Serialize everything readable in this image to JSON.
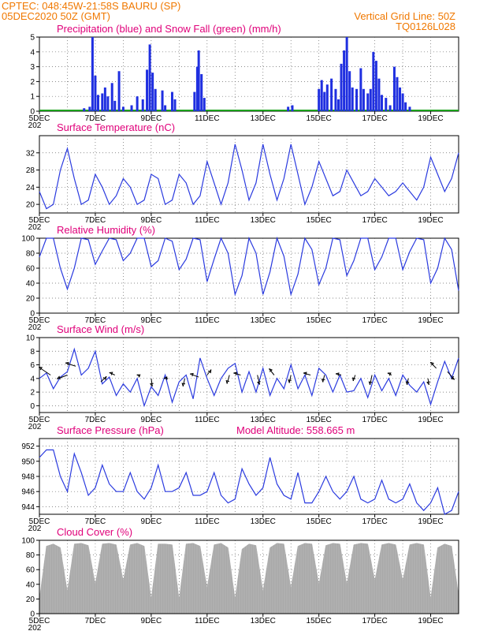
{
  "header": {
    "line1_left": "CPTEC:   048:45W-21:58S   BAURU (SP)",
    "line2_left": "05DEC2020 50Z (GMT)",
    "line1_right": "Vertical Grid Line: 50Z",
    "line2_right": "TQ0126L028"
  },
  "colors": {
    "header": "#f07800",
    "panel_title": "#e0007a",
    "line": "#2a3adf",
    "precip": "#1f2fe0",
    "snow": "#1aa01a",
    "cloud": "#a9a9a9"
  },
  "x_axis": {
    "ticks": [
      "5DEC",
      "7DEC",
      "9DEC",
      "11DEC",
      "13DEC",
      "15DEC",
      "17DEC",
      "19DEC"
    ],
    "sub_label": "202"
  },
  "chart_data": [
    {
      "id": "precip",
      "type": "bar",
      "title": "Precipitation (blue) and Snow Fall (green) (mm/h)",
      "ylim": [
        0,
        5
      ],
      "yticks": [
        0,
        1,
        2,
        3,
        4,
        5
      ],
      "x_start_day": 5,
      "x_end_day": 20,
      "bars": [
        {
          "x": 6.6,
          "y": 0.2
        },
        {
          "x": 6.8,
          "y": 0.3
        },
        {
          "x": 6.9,
          "y": 5.0
        },
        {
          "x": 7.0,
          "y": 2.4
        },
        {
          "x": 7.1,
          "y": 1.1
        },
        {
          "x": 7.25,
          "y": 1.2
        },
        {
          "x": 7.35,
          "y": 1.6
        },
        {
          "x": 7.45,
          "y": 1.0
        },
        {
          "x": 7.6,
          "y": 1.9
        },
        {
          "x": 7.7,
          "y": 0.7
        },
        {
          "x": 7.85,
          "y": 2.7
        },
        {
          "x": 8.0,
          "y": 0.3
        },
        {
          "x": 8.3,
          "y": 0.4
        },
        {
          "x": 8.5,
          "y": 1.0
        },
        {
          "x": 8.7,
          "y": 0.8
        },
        {
          "x": 8.85,
          "y": 2.8
        },
        {
          "x": 8.95,
          "y": 4.5
        },
        {
          "x": 9.05,
          "y": 2.6
        },
        {
          "x": 9.15,
          "y": 1.5
        },
        {
          "x": 9.4,
          "y": 1.4
        },
        {
          "x": 9.5,
          "y": 0.4
        },
        {
          "x": 9.75,
          "y": 1.3
        },
        {
          "x": 9.85,
          "y": 0.8
        },
        {
          "x": 10.55,
          "y": 1.3
        },
        {
          "x": 10.65,
          "y": 3.0
        },
        {
          "x": 10.7,
          "y": 4.1
        },
        {
          "x": 10.8,
          "y": 2.5
        },
        {
          "x": 10.9,
          "y": 0.9
        },
        {
          "x": 13.9,
          "y": 0.3
        },
        {
          "x": 14.05,
          "y": 0.4
        },
        {
          "x": 15.0,
          "y": 1.5
        },
        {
          "x": 15.1,
          "y": 2.1
        },
        {
          "x": 15.2,
          "y": 1.3
        },
        {
          "x": 15.3,
          "y": 1.8
        },
        {
          "x": 15.45,
          "y": 2.2
        },
        {
          "x": 15.6,
          "y": 1.5
        },
        {
          "x": 15.7,
          "y": 0.8
        },
        {
          "x": 15.8,
          "y": 3.2
        },
        {
          "x": 15.9,
          "y": 4.1
        },
        {
          "x": 16.0,
          "y": 5.0
        },
        {
          "x": 16.1,
          "y": 2.7
        },
        {
          "x": 16.2,
          "y": 1.6
        },
        {
          "x": 16.35,
          "y": 1.5
        },
        {
          "x": 16.5,
          "y": 2.9
        },
        {
          "x": 16.6,
          "y": 1.5
        },
        {
          "x": 16.75,
          "y": 1.2
        },
        {
          "x": 16.85,
          "y": 1.5
        },
        {
          "x": 16.95,
          "y": 4.0
        },
        {
          "x": 17.05,
          "y": 3.4
        },
        {
          "x": 17.15,
          "y": 2.2
        },
        {
          "x": 17.25,
          "y": 1.1
        },
        {
          "x": 17.4,
          "y": 0.9
        },
        {
          "x": 17.55,
          "y": 0.4
        },
        {
          "x": 17.7,
          "y": 3.0
        },
        {
          "x": 17.8,
          "y": 2.3
        },
        {
          "x": 17.9,
          "y": 1.6
        },
        {
          "x": 18.0,
          "y": 1.2
        },
        {
          "x": 18.1,
          "y": 0.6
        },
        {
          "x": 18.25,
          "y": 0.3
        }
      ],
      "snow_baseline": 0.05
    },
    {
      "id": "temp",
      "type": "line",
      "title": "Surface Temperature (nC)",
      "ylim": [
        18,
        36
      ],
      "yticks": [
        20,
        24,
        28,
        32
      ],
      "x": [
        5.0,
        5.25,
        5.5,
        5.75,
        6.0,
        6.25,
        6.5,
        6.75,
        7.0,
        7.25,
        7.5,
        7.75,
        8.0,
        8.25,
        8.5,
        8.75,
        9.0,
        9.25,
        9.5,
        9.75,
        10.0,
        10.25,
        10.5,
        10.75,
        11.0,
        11.25,
        11.5,
        11.75,
        12.0,
        12.25,
        12.5,
        12.75,
        13.0,
        13.25,
        13.5,
        13.75,
        14.0,
        14.25,
        14.5,
        14.75,
        15.0,
        15.25,
        15.5,
        15.75,
        16.0,
        16.25,
        16.5,
        16.75,
        17.0,
        17.25,
        17.5,
        17.75,
        18.0,
        18.25,
        18.5,
        18.75,
        19.0,
        19.25,
        19.5,
        19.75,
        20.0
      ],
      "values": [
        23,
        19,
        20,
        28,
        33,
        26,
        20,
        21,
        27,
        24,
        20,
        22,
        26,
        24,
        20,
        21,
        27,
        26,
        20,
        21,
        27,
        25,
        20,
        22,
        30,
        25,
        20,
        25,
        34,
        28,
        21,
        25,
        34,
        27,
        21,
        26,
        34,
        27,
        20,
        24,
        30,
        26,
        22,
        23,
        28,
        25,
        22,
        23,
        26,
        24,
        22,
        23,
        25,
        23,
        21,
        24,
        31,
        27,
        23,
        26,
        32
      ]
    },
    {
      "id": "rh",
      "type": "line",
      "title": "Relative Humidity (%)",
      "ylim": [
        0,
        100
      ],
      "yticks": [
        0,
        20,
        40,
        60,
        80,
        100
      ],
      "x": [
        5.0,
        5.25,
        5.5,
        5.75,
        6.0,
        6.25,
        6.5,
        6.75,
        7.0,
        7.25,
        7.5,
        7.75,
        8.0,
        8.25,
        8.5,
        8.75,
        9.0,
        9.25,
        9.5,
        9.75,
        10.0,
        10.25,
        10.5,
        10.75,
        11.0,
        11.25,
        11.5,
        11.75,
        12.0,
        12.25,
        12.5,
        12.75,
        13.0,
        13.25,
        13.5,
        13.75,
        14.0,
        14.25,
        14.5,
        14.75,
        15.0,
        15.25,
        15.5,
        15.75,
        16.0,
        16.25,
        16.5,
        16.75,
        17.0,
        17.25,
        17.5,
        17.75,
        18.0,
        18.25,
        18.5,
        18.75,
        19.0,
        19.25,
        19.5,
        19.75,
        20.0
      ],
      "values": [
        75,
        100,
        100,
        60,
        32,
        60,
        100,
        98,
        65,
        83,
        100,
        98,
        70,
        80,
        100,
        100,
        62,
        70,
        100,
        96,
        58,
        72,
        100,
        98,
        42,
        72,
        100,
        80,
        25,
        50,
        100,
        80,
        25,
        55,
        100,
        76,
        25,
        52,
        100,
        85,
        38,
        60,
        100,
        98,
        50,
        70,
        100,
        100,
        58,
        75,
        100,
        100,
        58,
        82,
        100,
        98,
        40,
        60,
        100,
        85,
        30
      ]
    },
    {
      "id": "wind",
      "type": "line",
      "title": "Surface Wind (m/s)",
      "ylim": [
        -1,
        10
      ],
      "yticks": [
        0,
        2,
        4,
        6,
        8,
        10
      ],
      "x": [
        5.0,
        5.25,
        5.5,
        5.75,
        6.0,
        6.25,
        6.5,
        6.75,
        7.0,
        7.25,
        7.5,
        7.75,
        8.0,
        8.25,
        8.5,
        8.75,
        9.0,
        9.25,
        9.5,
        9.75,
        10.0,
        10.25,
        10.5,
        10.75,
        11.0,
        11.25,
        11.5,
        11.75,
        12.0,
        12.25,
        12.5,
        12.75,
        13.0,
        13.25,
        13.5,
        13.75,
        14.0,
        14.25,
        14.5,
        14.75,
        15.0,
        15.25,
        15.5,
        15.75,
        16.0,
        16.25,
        16.5,
        16.75,
        17.0,
        17.25,
        17.5,
        17.75,
        18.0,
        18.25,
        18.5,
        18.75,
        19.0,
        19.25,
        19.5,
        19.75,
        20.0
      ],
      "values": [
        4.0,
        4.8,
        2.5,
        4.2,
        5.0,
        8.3,
        4.5,
        5.5,
        8.0,
        3.2,
        4.2,
        1.5,
        3.2,
        2.0,
        4.0,
        0.0,
        2.8,
        1.5,
        4.5,
        0.5,
        3.5,
        4.5,
        1.0,
        7.0,
        4.0,
        1.5,
        4.0,
        5.5,
        6.2,
        2.0,
        5.0,
        2.0,
        5.5,
        1.5,
        4.0,
        2.5,
        6.0,
        2.5,
        4.5,
        1.5,
        5.5,
        4.5,
        2.0,
        4.5,
        2.0,
        2.2,
        4.0,
        1.2,
        4.5,
        2.2,
        4.0,
        1.5,
        4.5,
        3.0,
        2.0,
        3.5,
        0.2,
        3.5,
        6.5,
        4.0,
        7.0
      ],
      "arrows": [
        {
          "x": 5.4,
          "y": 4.5,
          "u": -3.0,
          "v": 2.0
        },
        {
          "x": 6.0,
          "y": 4.5,
          "u": -2.6,
          "v": -1.0
        },
        {
          "x": 6.3,
          "y": 5.8,
          "u": -2.6,
          "v": 0.8
        },
        {
          "x": 7.2,
          "y": 3.5,
          "u": 1.4,
          "v": 1.4
        },
        {
          "x": 7.7,
          "y": 4.5,
          "u": -1.4,
          "v": 0.6
        },
        {
          "x": 8.6,
          "y": 4.3,
          "u": -0.8,
          "v": 0.4
        },
        {
          "x": 9.0,
          "y": 4.0,
          "u": 0.3,
          "v": -2.0
        },
        {
          "x": 9.6,
          "y": 4.0,
          "u": -1.0,
          "v": 0.0
        },
        {
          "x": 10.2,
          "y": 4.0,
          "u": -0.4,
          "v": -2.0
        },
        {
          "x": 10.7,
          "y": 4.2,
          "u": -2.2,
          "v": 0.8
        },
        {
          "x": 11.0,
          "y": 4.5,
          "u": 1.0,
          "v": 1.4
        },
        {
          "x": 11.8,
          "y": 4.5,
          "u": -0.6,
          "v": -2.2
        },
        {
          "x": 12.2,
          "y": 4.5,
          "u": -1.8,
          "v": 0.5
        },
        {
          "x": 12.8,
          "y": 4.5,
          "u": 0.6,
          "v": -2.4
        },
        {
          "x": 13.4,
          "y": 4.5,
          "u": -1.3,
          "v": 1.6
        },
        {
          "x": 14.0,
          "y": 4.5,
          "u": -0.4,
          "v": -2.0
        },
        {
          "x": 14.7,
          "y": 4.5,
          "u": -1.8,
          "v": 0.5
        },
        {
          "x": 15.2,
          "y": 4.5,
          "u": -0.4,
          "v": -1.8
        },
        {
          "x": 15.8,
          "y": 4.5,
          "u": -1.4,
          "v": 0.3
        },
        {
          "x": 16.3,
          "y": 4.5,
          "u": -0.5,
          "v": -1.5
        },
        {
          "x": 16.9,
          "y": 4.5,
          "u": -0.5,
          "v": -2.5
        },
        {
          "x": 17.6,
          "y": 4.5,
          "u": -1.0,
          "v": 0.5
        },
        {
          "x": 18.2,
          "y": 4.0,
          "u": -0.3,
          "v": -1.6
        },
        {
          "x": 18.9,
          "y": 4.0,
          "u": 0.3,
          "v": -1.6
        },
        {
          "x": 19.2,
          "y": 5.5,
          "u": -1.5,
          "v": 1.5
        },
        {
          "x": 19.6,
          "y": 5.0,
          "u": 1.8,
          "v": -2.0
        }
      ]
    },
    {
      "id": "pres",
      "type": "line",
      "title": "Surface Pressure (hPa)",
      "subtitle": "Model Altitude: 558.665  m",
      "ylim": [
        943,
        953
      ],
      "yticks": [
        944,
        946,
        948,
        950,
        952
      ],
      "x": [
        5.0,
        5.25,
        5.5,
        5.75,
        6.0,
        6.25,
        6.5,
        6.75,
        7.0,
        7.25,
        7.5,
        7.75,
        8.0,
        8.25,
        8.5,
        8.75,
        9.0,
        9.25,
        9.5,
        9.75,
        10.0,
        10.25,
        10.5,
        10.75,
        11.0,
        11.25,
        11.5,
        11.75,
        12.0,
        12.25,
        12.5,
        12.75,
        13.0,
        13.25,
        13.5,
        13.75,
        14.0,
        14.25,
        14.5,
        14.75,
        15.0,
        15.25,
        15.5,
        15.75,
        16.0,
        16.25,
        16.5,
        16.75,
        17.0,
        17.25,
        17.5,
        17.75,
        18.0,
        18.25,
        18.5,
        18.75,
        19.0,
        19.25,
        19.5,
        19.75,
        20.0
      ],
      "values": [
        950.5,
        951.5,
        951.5,
        948.0,
        946.0,
        951.0,
        948.5,
        945.5,
        946.5,
        949.5,
        947.0,
        946.0,
        946.0,
        948.5,
        946.0,
        945.0,
        946.5,
        949.5,
        946.0,
        946.0,
        946.5,
        948.5,
        945.5,
        945.5,
        946.0,
        948.5,
        945.5,
        944.5,
        945.0,
        949.0,
        947.0,
        945.5,
        946.5,
        950.5,
        947.0,
        945.5,
        945.0,
        948.5,
        944.5,
        944.5,
        946.0,
        948.0,
        946.0,
        945.0,
        946.0,
        948.0,
        945.0,
        944.5,
        945.0,
        947.5,
        945.0,
        944.5,
        945.0,
        947.0,
        944.5,
        943.5,
        944.5,
        946.5,
        943.0,
        943.5,
        946.0
      ]
    },
    {
      "id": "cloud",
      "type": "area",
      "title": "Cloud Cover (%)",
      "ylim": [
        0,
        100
      ],
      "yticks": [
        0,
        20,
        40,
        60,
        80,
        100
      ],
      "x": [
        5.0,
        5.25,
        5.5,
        5.75,
        6.0,
        6.25,
        6.5,
        6.75,
        7.0,
        7.25,
        7.5,
        7.75,
        8.0,
        8.25,
        8.5,
        8.75,
        9.0,
        9.25,
        9.5,
        9.75,
        10.0,
        10.25,
        10.5,
        10.75,
        11.0,
        11.25,
        11.5,
        11.75,
        12.0,
        12.25,
        12.5,
        12.75,
        13.0,
        13.25,
        13.5,
        13.75,
        14.0,
        14.25,
        14.5,
        14.75,
        15.0,
        15.25,
        15.5,
        15.75,
        16.0,
        16.25,
        16.5,
        16.75,
        17.0,
        17.25,
        17.5,
        17.75,
        18.0,
        18.25,
        18.5,
        18.75,
        19.0,
        19.25,
        19.5,
        19.75,
        20.0
      ],
      "values": [
        20,
        92,
        95,
        90,
        30,
        95,
        96,
        93,
        40,
        95,
        96,
        94,
        45,
        94,
        96,
        92,
        20,
        95,
        95,
        94,
        20,
        95,
        96,
        92,
        35,
        94,
        96,
        90,
        20,
        88,
        95,
        93,
        30,
        90,
        96,
        95,
        35,
        92,
        96,
        95,
        40,
        93,
        96,
        95,
        40,
        94,
        96,
        95,
        45,
        94,
        96,
        94,
        45,
        94,
        96,
        94,
        20,
        90,
        95,
        92,
        25
      ]
    }
  ]
}
